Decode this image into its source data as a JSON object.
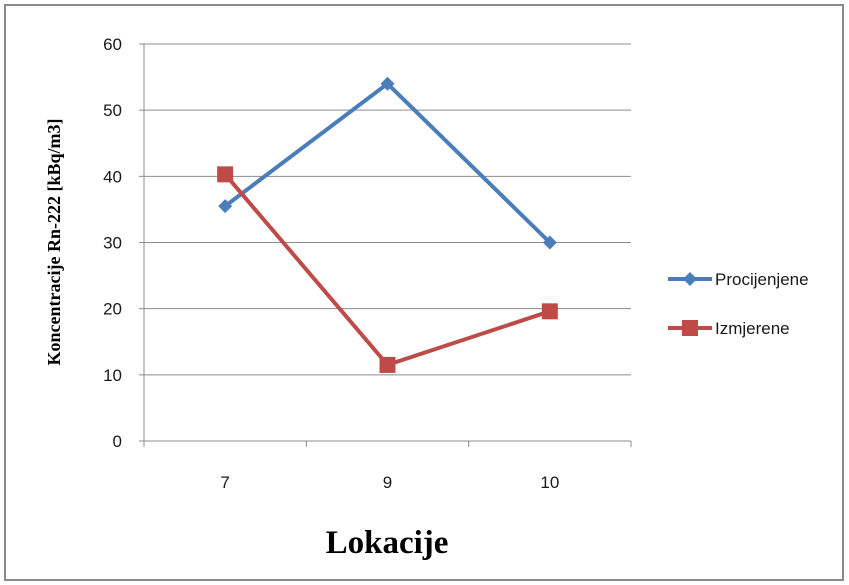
{
  "chart_data": {
    "type": "line",
    "categories": [
      "7",
      "9",
      "10"
    ],
    "series": [
      {
        "name": "Procijenjene",
        "values": [
          35.5,
          54,
          30
        ],
        "color": "#4a7ebb",
        "marker": "diamond"
      },
      {
        "name": "Izmjerene",
        "values": [
          40.3,
          11.5,
          19.6
        ],
        "color": "#be4b48",
        "marker": "square"
      }
    ],
    "ylim": [
      0,
      60
    ],
    "yticks": [
      "0",
      "10",
      "20",
      "30",
      "40",
      "50",
      "60"
    ],
    "xlabel": "Lokacije",
    "ylabel": "Koncentracije  Rn-222 [kBq/m3]",
    "grid": true,
    "legend": "right"
  }
}
